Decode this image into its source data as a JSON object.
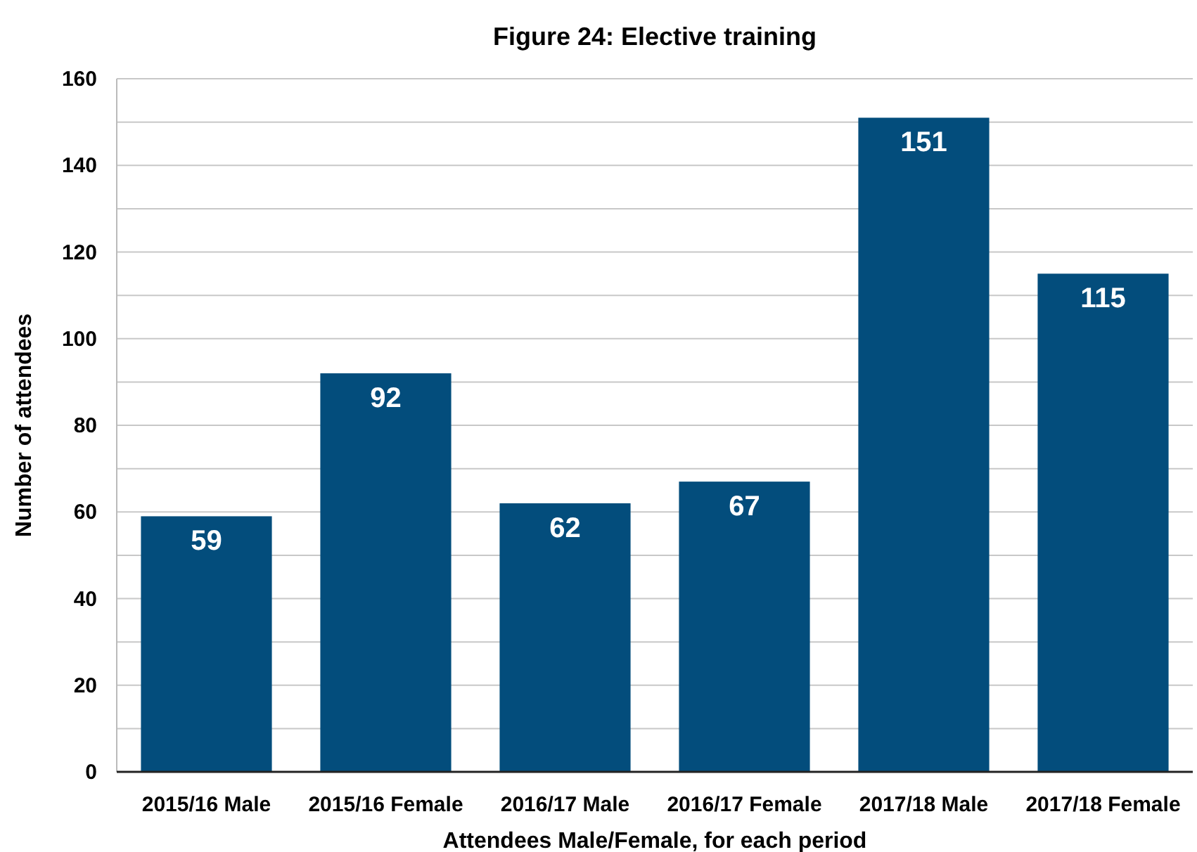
{
  "chart_data": {
    "type": "bar",
    "title": "Figure 24: Elective training",
    "xlabel": "Attendees Male/Female, for each period",
    "ylabel": "Number of attendees",
    "categories": [
      "2015/16 Male",
      "2015/16 Female",
      "2016/17 Male",
      "2016/17 Female",
      "2017/18 Male",
      "2017/18 Female"
    ],
    "values": [
      59,
      92,
      62,
      67,
      151,
      115
    ],
    "color": "#034d7c",
    "ylim": [
      0,
      160
    ],
    "yticks": [
      0,
      {
        "value": 10,
        "label": null
      },
      20,
      {
        "value": 30,
        "label": null
      },
      40,
      {
        "value": 50,
        "label": null
      },
      60,
      {
        "value": 70,
        "label": null
      },
      80,
      {
        "value": 90,
        "label": null
      },
      100,
      {
        "value": 110,
        "label": null
      },
      120,
      {
        "value": 130,
        "label": null
      },
      140,
      {
        "value": 150,
        "label": null
      },
      160
    ],
    "grid": "y",
    "data_labels": true
  }
}
